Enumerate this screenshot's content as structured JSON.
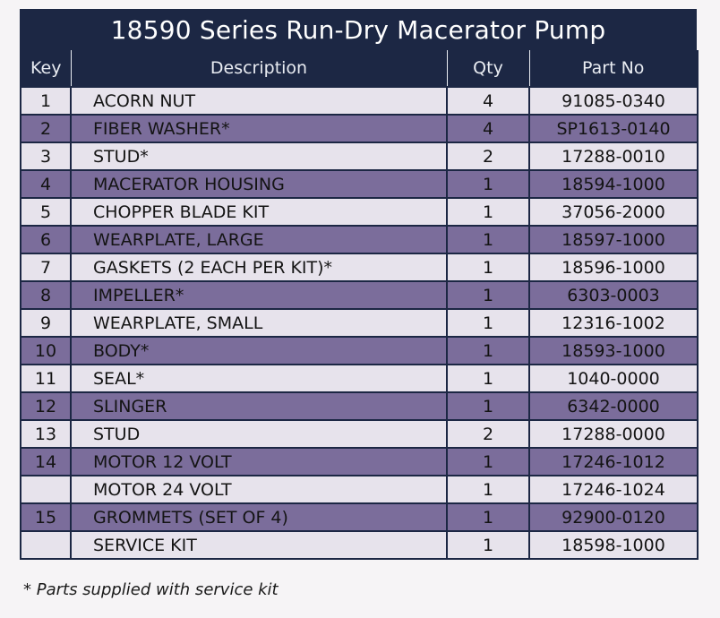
{
  "title": "18590 Series Run-Dry Macerator Pump",
  "headers": {
    "key": "Key",
    "description": "Description",
    "qty": "Qty",
    "part_no": "Part No"
  },
  "rows": [
    {
      "key": "1",
      "description": "ACORN NUT",
      "qty": "4",
      "part_no": "91085-0340"
    },
    {
      "key": "2",
      "description": "FIBER WASHER*",
      "qty": "4",
      "part_no": "SP1613-0140"
    },
    {
      "key": "3",
      "description": "STUD*",
      "qty": "2",
      "part_no": "17288-0010"
    },
    {
      "key": "4",
      "description": "MACERATOR HOUSING",
      "qty": "1",
      "part_no": "18594-1000"
    },
    {
      "key": "5",
      "description": "CHOPPER BLADE KIT",
      "qty": "1",
      "part_no": "37056-2000"
    },
    {
      "key": "6",
      "description": "WEARPLATE, LARGE",
      "qty": "1",
      "part_no": "18597-1000"
    },
    {
      "key": "7",
      "description": "GASKETS (2 EACH PER KIT)*",
      "qty": "1",
      "part_no": "18596-1000"
    },
    {
      "key": "8",
      "description": "IMPELLER*",
      "qty": "1",
      "part_no": "6303-0003"
    },
    {
      "key": "9",
      "description": "WEARPLATE, SMALL",
      "qty": "1",
      "part_no": "12316-1002"
    },
    {
      "key": "10",
      "description": "BODY*",
      "qty": "1",
      "part_no": "18593-1000"
    },
    {
      "key": "11",
      "description": "SEAL*",
      "qty": "1",
      "part_no": "1040-0000"
    },
    {
      "key": "12",
      "description": "SLINGER",
      "qty": "1",
      "part_no": "6342-0000"
    },
    {
      "key": "13",
      "description": "STUD",
      "qty": "2",
      "part_no": "17288-0000"
    },
    {
      "key": "14",
      "description": "MOTOR 12 VOLT",
      "qty": "1",
      "part_no": "17246-1012"
    },
    {
      "key": "",
      "description": "MOTOR 24 VOLT",
      "qty": "1",
      "part_no": "17246-1024"
    },
    {
      "key": "15",
      "description": "GROMMETS (SET OF 4)",
      "qty": "1",
      "part_no": "92900-0120"
    },
    {
      "key": "",
      "description": "SERVICE KIT",
      "qty": "1",
      "part_no": "18598-1000"
    }
  ],
  "footnote": "* Parts supplied with service kit",
  "colors": {
    "header_bg": "#1c2744",
    "row_light": "#e7e3ec",
    "row_dark": "#7b6d9b"
  }
}
